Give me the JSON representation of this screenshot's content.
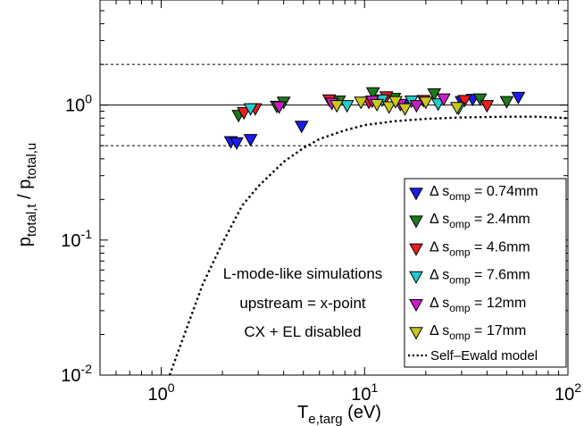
{
  "chart_data": {
    "type": "scatter",
    "xscale": "log",
    "yscale": "log",
    "xlim": [
      0.5,
      100
    ],
    "ylim": [
      0.01,
      6
    ],
    "xlabel": {
      "main": "T",
      "sub": "e,targ",
      "unit": " (eV)"
    },
    "ylabel": {
      "num_main": "p",
      "num_sub": "total,t",
      "sep": " / ",
      "den_main": "p",
      "den_sub": "total,u"
    },
    "x_ticks": [
      {
        "value": 1,
        "base": "10",
        "exp": "0"
      },
      {
        "value": 10,
        "base": "10",
        "exp": "1"
      },
      {
        "value": 100,
        "base": "10",
        "exp": "2"
      }
    ],
    "y_ticks": [
      {
        "value": 0.01,
        "base": "10",
        "exp": "-2"
      },
      {
        "value": 0.1,
        "base": "10",
        "exp": "-1"
      },
      {
        "value": 1,
        "base": "10",
        "exp": "0"
      }
    ],
    "reference_lines": [
      {
        "y": 1,
        "style": "solid"
      },
      {
        "y": 2,
        "style": "dashed"
      },
      {
        "y": 0.5,
        "style": "dashed"
      }
    ],
    "series": [
      {
        "name": "Δ s",
        "sub": "omp",
        "suffix": " = 0.74mm",
        "color": "#1c1cf0",
        "points": [
          [
            2.2,
            0.53
          ],
          [
            2.35,
            0.52
          ],
          [
            2.75,
            0.55
          ],
          [
            4.9,
            0.69
          ],
          [
            16,
            1.0
          ],
          [
            30,
            1.05
          ],
          [
            34,
            1.09
          ],
          [
            57,
            1.13
          ]
        ]
      },
      {
        "name": "Δ s",
        "sub": "omp",
        "suffix": " = 2.4mm",
        "color": "#1e7a1e",
        "points": [
          [
            2.4,
            0.83
          ],
          [
            3.7,
            0.97
          ],
          [
            4.0,
            1.04
          ],
          [
            7.5,
            1.06
          ],
          [
            11,
            1.22
          ],
          [
            14,
            1.11
          ],
          [
            22,
            1.2
          ],
          [
            37,
            1.1
          ],
          [
            50,
            1.05
          ]
        ]
      },
      {
        "name": "Δ s",
        "sub": "omp",
        "suffix": " = 4.6mm",
        "color": "#ee1c1c",
        "points": [
          [
            2.55,
            0.87
          ],
          [
            2.9,
            0.93
          ],
          [
            6.7,
            1.08
          ],
          [
            10.5,
            1.04
          ],
          [
            12.8,
            1.14
          ],
          [
            19.5,
            1.07
          ],
          [
            31,
            1.07
          ],
          [
            40,
            0.98
          ]
        ]
      },
      {
        "name": "Δ s",
        "sub": "omp",
        "suffix": " = 7.6mm",
        "color": "#22cccc",
        "points": [
          [
            2.75,
            0.93
          ],
          [
            8.2,
            0.98
          ],
          [
            12.2,
            1.08
          ],
          [
            17,
            1.06
          ],
          [
            23,
            1.01
          ],
          [
            29,
            0.94
          ]
        ]
      },
      {
        "name": "Δ s",
        "sub": "omp",
        "suffix": " = 12mm",
        "color": "#c81ec8",
        "points": [
          [
            3.8,
            0.96
          ],
          [
            6.9,
            1.02
          ],
          [
            10.9,
            1.06
          ],
          [
            15,
            1.0
          ],
          [
            18,
            0.98
          ],
          [
            24.5,
            1.1
          ]
        ]
      },
      {
        "name": "Δ s",
        "sub": "omp",
        "suffix": " = 17mm",
        "color": "#c8c81e",
        "points": [
          [
            7.3,
            0.98
          ],
          [
            9.6,
            1.04
          ],
          [
            11.5,
            1.0
          ],
          [
            13.2,
            0.96
          ],
          [
            14.2,
            1.05
          ],
          [
            15.8,
            0.93
          ],
          [
            20,
            1.04
          ],
          [
            28.5,
            0.95
          ]
        ]
      }
    ],
    "model": {
      "name": "Self–Ewald model",
      "style": "dotted",
      "points": [
        [
          1.1,
          0.01
        ],
        [
          1.3,
          0.02
        ],
        [
          1.6,
          0.047
        ],
        [
          2.0,
          0.095
        ],
        [
          2.5,
          0.18
        ],
        [
          3.0,
          0.25
        ],
        [
          4.0,
          0.38
        ],
        [
          5.0,
          0.48
        ],
        [
          6.0,
          0.56
        ],
        [
          8.0,
          0.65
        ],
        [
          10,
          0.71
        ],
        [
          14,
          0.76
        ],
        [
          20,
          0.79
        ],
        [
          30,
          0.81
        ],
        [
          50,
          0.82
        ],
        [
          70,
          0.82
        ],
        [
          100,
          0.8
        ]
      ]
    },
    "annotation": [
      "L-mode-like simulations",
      "upstream = x-point",
      "CX + EL disabled"
    ]
  }
}
